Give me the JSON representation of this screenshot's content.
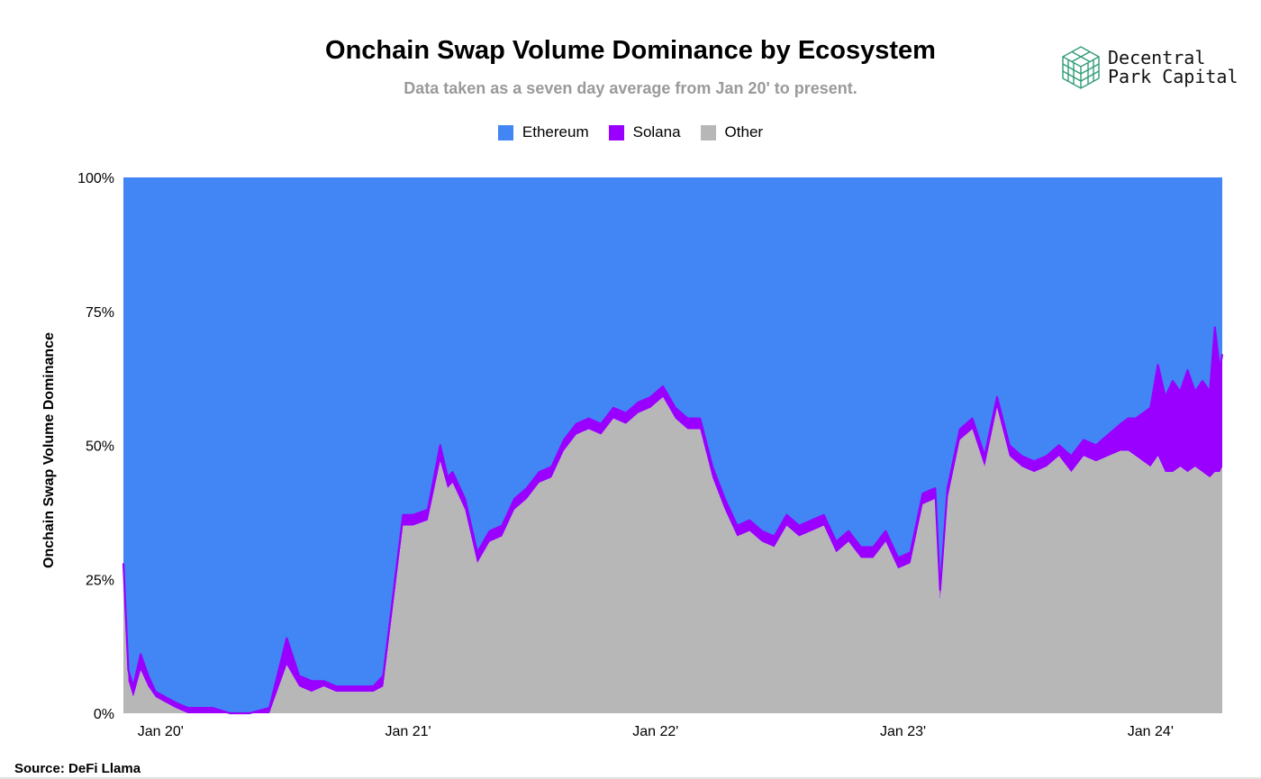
{
  "chart_data": {
    "type": "area",
    "stacked": true,
    "percent": true,
    "title": "Onchain Swap Volume Dominance by Ecosystem",
    "subtitle": "Data taken as a seven day average from Jan 20' to present.",
    "ylabel": "Onchain Swap Volume Dominance",
    "xlabel": "",
    "ylim": [
      0,
      100
    ],
    "y_ticks": [
      "0%",
      "25%",
      "50%",
      "75%",
      "100%"
    ],
    "x_ticks": [
      {
        "label": "Jan 20'",
        "t": 2020.0
      },
      {
        "label": "Jan 21'",
        "t": 2021.0
      },
      {
        "label": "Jan 22'",
        "t": 2022.0
      },
      {
        "label": "Jan 23'",
        "t": 2023.0
      },
      {
        "label": "Jan 24'",
        "t": 2024.0
      }
    ],
    "x_range": [
      2019.97,
      2024.41
    ],
    "legend_position": "top-center",
    "t": [
      2019.97,
      2019.99,
      2020.01,
      2020.04,
      2020.07,
      2020.1,
      2020.14,
      2020.18,
      2020.23,
      2020.28,
      2020.33,
      2020.4,
      2020.48,
      2020.56,
      2020.63,
      2020.68,
      2020.73,
      2020.78,
      2020.83,
      2020.88,
      2020.93,
      2020.98,
      2021.02,
      2021.1,
      2021.14,
      2021.2,
      2021.25,
      2021.28,
      2021.3,
      2021.35,
      2021.4,
      2021.45,
      2021.5,
      2021.55,
      2021.6,
      2021.65,
      2021.7,
      2021.75,
      2021.8,
      2021.85,
      2021.9,
      2021.95,
      2022.0,
      2022.05,
      2022.1,
      2022.15,
      2022.2,
      2022.25,
      2022.3,
      2022.35,
      2022.4,
      2022.45,
      2022.5,
      2022.55,
      2022.6,
      2022.65,
      2022.7,
      2022.75,
      2022.8,
      2022.85,
      2022.9,
      2022.95,
      2023.0,
      2023.05,
      2023.1,
      2023.15,
      2023.2,
      2023.25,
      2023.27,
      2023.3,
      2023.35,
      2023.4,
      2023.45,
      2023.5,
      2023.55,
      2023.6,
      2023.65,
      2023.7,
      2023.75,
      2023.8,
      2023.85,
      2023.9,
      2023.95,
      2024.0,
      2024.03,
      2024.06,
      2024.09,
      2024.12,
      2024.15,
      2024.18,
      2024.21,
      2024.24,
      2024.27,
      2024.3,
      2024.33,
      2024.36,
      2024.38,
      2024.4,
      2024.41
    ],
    "series": [
      {
        "name": "Ethereum",
        "color": "#4285f4",
        "values": [
          72,
          92,
          95,
          89,
          93,
          96,
          97,
          98,
          99,
          99,
          99,
          100,
          100,
          99,
          86,
          93,
          94,
          94,
          95,
          95,
          95,
          95,
          93,
          63,
          63,
          62,
          50,
          56,
          55,
          60,
          70,
          66,
          65,
          60,
          58,
          55,
          54,
          49,
          46,
          45,
          46,
          43,
          44,
          42,
          41,
          39,
          43,
          45,
          45,
          54,
          60,
          65,
          64,
          66,
          67,
          63,
          65,
          64,
          63,
          68,
          66,
          69,
          69,
          66,
          71,
          70,
          59,
          58,
          77,
          58,
          47,
          45,
          52,
          41,
          50,
          52,
          53,
          52,
          50,
          52,
          49,
          50,
          48,
          46,
          45,
          45,
          44,
          43,
          35,
          41,
          38,
          40,
          36,
          40,
          38,
          40,
          28,
          36,
          33
        ]
      },
      {
        "name": "Solana",
        "color": "#9900ff",
        "values": [
          3,
          2,
          2,
          3,
          2,
          1,
          1,
          1,
          1,
          1,
          1,
          0,
          0,
          1,
          5,
          2,
          2,
          1,
          1,
          1,
          1,
          1,
          2,
          2,
          2,
          2,
          3,
          2,
          2,
          2,
          2,
          2,
          2,
          2,
          2,
          2,
          2,
          2,
          2,
          2,
          2,
          2,
          2,
          2,
          2,
          2,
          2,
          2,
          2,
          2,
          2,
          2,
          2,
          2,
          2,
          2,
          2,
          2,
          2,
          2,
          2,
          2,
          2,
          2,
          2,
          2,
          2,
          2,
          2,
          2,
          2,
          2,
          2,
          2,
          2,
          2,
          2,
          2,
          2,
          3,
          3,
          3,
          4,
          5,
          6,
          7,
          9,
          11,
          17,
          14,
          17,
          14,
          19,
          14,
          17,
          16,
          27,
          19,
          21
        ]
      },
      {
        "name": "Other",
        "color": "#b7b7b7",
        "values": [
          25,
          6,
          3,
          8,
          5,
          3,
          2,
          1,
          0,
          0,
          0,
          0,
          0,
          0,
          9,
          5,
          4,
          5,
          4,
          4,
          4,
          4,
          5,
          35,
          35,
          36,
          47,
          42,
          43,
          38,
          28,
          32,
          33,
          38,
          40,
          43,
          44,
          49,
          52,
          53,
          52,
          55,
          54,
          56,
          57,
          59,
          55,
          53,
          53,
          44,
          38,
          33,
          34,
          32,
          31,
          35,
          33,
          34,
          35,
          30,
          32,
          29,
          29,
          32,
          27,
          28,
          39,
          40,
          21,
          40,
          51,
          53,
          46,
          57,
          48,
          46,
          45,
          46,
          48,
          45,
          48,
          47,
          48,
          49,
          49,
          48,
          47,
          46,
          48,
          45,
          45,
          46,
          45,
          46,
          45,
          44,
          45,
          45,
          46
        ]
      }
    ]
  },
  "logo": {
    "line1": "Decentral",
    "line2": "Park Capital"
  },
  "source": "Source: DeFi Llama"
}
